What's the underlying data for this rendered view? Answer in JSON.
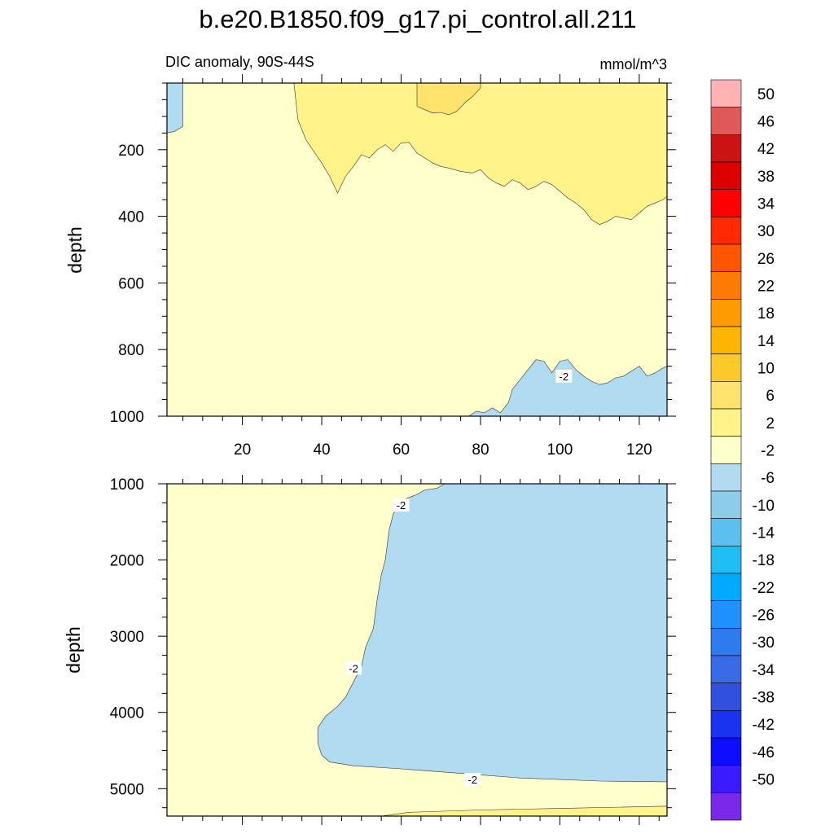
{
  "title": "b.e20.B1850.f09_g17.pi_control.all.211",
  "chart_data": {
    "type": "contour",
    "variable": "DIC anomaly, 90S-44S",
    "units": "mmol/m^3",
    "xlim": [
      1,
      127
    ],
    "panels": [
      {
        "id": "upper",
        "ylabel": "depth",
        "ylim": [
          0,
          1000
        ],
        "y_reversed": true,
        "y_ticks": [
          200,
          400,
          600,
          800,
          1000
        ],
        "x_ticks": [
          20,
          40,
          60,
          80,
          100,
          120
        ],
        "contour_labels": [
          {
            "x": 101,
            "y": 880,
            "text": "-2"
          }
        ],
        "regions": [
          {
            "bin": "2 to 6",
            "color": "#fff38a",
            "boundary": [
              [
                33,
                0
              ],
              [
                34,
                110
              ],
              [
                36,
                170
              ],
              [
                40,
                240
              ],
              [
                42,
                280
              ],
              [
                44,
                330
              ],
              [
                46,
                280
              ],
              [
                48,
                250
              ],
              [
                50,
                215
              ],
              [
                52,
                225
              ],
              [
                54,
                200
              ],
              [
                56,
                185
              ],
              [
                58,
                205
              ],
              [
                60,
                180
              ],
              [
                62,
                178
              ],
              [
                64,
                210
              ],
              [
                66,
                225
              ],
              [
                68,
                240
              ],
              [
                70,
                250
              ],
              [
                72,
                255
              ],
              [
                75,
                265
              ],
              [
                78,
                270
              ],
              [
                80,
                260
              ],
              [
                82,
                285
              ],
              [
                84,
                300
              ],
              [
                86,
                310
              ],
              [
                88,
                290
              ],
              [
                90,
                300
              ],
              [
                92,
                320
              ],
              [
                94,
                310
              ],
              [
                96,
                295
              ],
              [
                98,
                305
              ],
              [
                100,
                325
              ],
              [
                102,
                345
              ],
              [
                104,
                360
              ],
              [
                106,
                380
              ],
              [
                108,
                410
              ],
              [
                110,
                425
              ],
              [
                112,
                415
              ],
              [
                114,
                400
              ],
              [
                116,
                405
              ],
              [
                118,
                410
              ],
              [
                120,
                390
              ],
              [
                122,
                370
              ],
              [
                124,
                360
              ],
              [
                126,
                350
              ],
              [
                127,
                340
              ],
              [
                127,
                0
              ]
            ]
          },
          {
            "bin": "6 to 10",
            "color": "#fde26b",
            "boundary": [
              [
                64,
                0
              ],
              [
                64,
                70
              ],
              [
                66,
                80
              ],
              [
                68,
                90
              ],
              [
                70,
                88
              ],
              [
                72,
                95
              ],
              [
                74,
                85
              ],
              [
                76,
                60
              ],
              [
                78,
                40
              ],
              [
                80,
                15
              ],
              [
                80,
                0
              ]
            ]
          },
          {
            "bin": "-6 to -2",
            "color": "#b1dbf1",
            "boundary": [
              [
                1,
                0
              ],
              [
                1,
                150
              ],
              [
                3,
                145
              ],
              [
                5,
                130
              ],
              [
                5,
                0
              ]
            ]
          },
          {
            "bin": "-6 to -2",
            "color": "#b1dbf1",
            "boundary": [
              [
                77,
                1000
              ],
              [
                79,
                985
              ],
              [
                81,
                990
              ],
              [
                83,
                975
              ],
              [
                85,
                990
              ],
              [
                87,
                960
              ],
              [
                88,
                920
              ],
              [
                90,
                890
              ],
              [
                92,
                860
              ],
              [
                94,
                830
              ],
              [
                96,
                835
              ],
              [
                98,
                870
              ],
              [
                100,
                835
              ],
              [
                102,
                830
              ],
              [
                104,
                860
              ],
              [
                106,
                880
              ],
              [
                108,
                895
              ],
              [
                110,
                905
              ],
              [
                112,
                900
              ],
              [
                114,
                885
              ],
              [
                116,
                880
              ],
              [
                118,
                865
              ],
              [
                120,
                850
              ],
              [
                122,
                880
              ],
              [
                124,
                870
              ],
              [
                126,
                855
              ],
              [
                127,
                850
              ],
              [
                127,
                1000
              ]
            ]
          }
        ]
      },
      {
        "id": "lower",
        "ylabel": "depth",
        "ylim": [
          1000,
          5360
        ],
        "y_reversed": true,
        "y_ticks": [
          1000,
          2000,
          3000,
          4000,
          5000
        ],
        "contour_labels": [
          {
            "x": 60,
            "y": 1280,
            "text": "-2"
          },
          {
            "x": 48,
            "y": 3420,
            "text": "-2"
          },
          {
            "x": 78,
            "y": 4880,
            "text": "-2"
          }
        ],
        "regions": [
          {
            "bin": "-6 to -2",
            "color": "#b1dbf1",
            "boundary": [
              [
                71,
                1000
              ],
              [
                69,
                1060
              ],
              [
                66,
                1080
              ],
              [
                64,
                1140
              ],
              [
                61,
                1200
              ],
              [
                59,
                1290
              ],
              [
                58,
                1400
              ],
              [
                57,
                1600
              ],
              [
                56,
                2000
              ],
              [
                55,
                2200
              ],
              [
                54,
                2500
              ],
              [
                53,
                2900
              ],
              [
                51,
                3150
              ],
              [
                50,
                3400
              ],
              [
                48,
                3600
              ],
              [
                46,
                3800
              ],
              [
                44,
                3920
              ],
              [
                41,
                4050
              ],
              [
                39,
                4200
              ],
              [
                39,
                4400
              ],
              [
                40,
                4560
              ],
              [
                42,
                4650
              ],
              [
                48,
                4700
              ],
              [
                60,
                4740
              ],
              [
                75,
                4800
              ],
              [
                90,
                4860
              ],
              [
                110,
                4900
              ],
              [
                127,
                4910
              ],
              [
                127,
                1000
              ]
            ]
          },
          {
            "bin": "2 to 6",
            "color": "#fff38a",
            "boundary": [
              [
                55,
                5360
              ],
              [
                62,
                5310
              ],
              [
                80,
                5280
              ],
              [
                100,
                5260
              ],
              [
                127,
                5230
              ],
              [
                127,
                5360
              ]
            ]
          }
        ]
      }
    ],
    "colorbar": {
      "labels": [
        "50",
        "46",
        "42",
        "38",
        "34",
        "30",
        "26",
        "22",
        "18",
        "14",
        "10",
        "6",
        "2",
        "-2",
        "-6",
        "-10",
        "-14",
        "-18",
        "-22",
        "-26",
        "-30",
        "-34",
        "-38",
        "-42",
        "-46",
        "-50"
      ],
      "colors": [
        "#ffb3b3",
        "#e15a5a",
        "#cc1414",
        "#dd0000",
        "#ff0000",
        "#ff2a00",
        "#ff5500",
        "#ff7a00",
        "#ff9a00",
        "#ffb400",
        "#fcc92a",
        "#fde26b",
        "#fff38a",
        "#ffffcc",
        "#b1dbf1",
        "#8ecde9",
        "#5cc0ef",
        "#1ebdf3",
        "#00aaff",
        "#1e90ff",
        "#2e7bf0",
        "#3a6be6",
        "#3050dd",
        "#1a33f0",
        "#0d0dff",
        "#3a1aff",
        "#7a28ea"
      ]
    }
  }
}
